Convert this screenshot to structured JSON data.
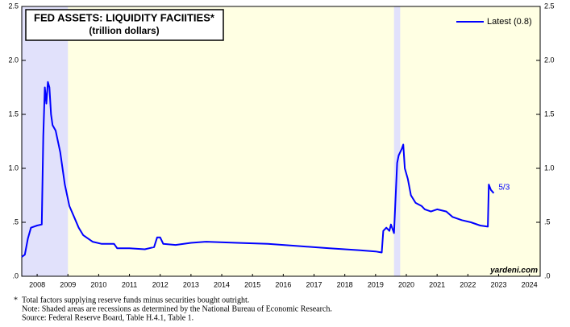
{
  "chart_data": {
    "type": "line",
    "title": "FED ASSETS: LIQUIDITY FACIITIES*",
    "subtitle": "(trillion dollars)",
    "x": [
      2008.0,
      2008.1,
      2008.2,
      2008.3,
      2008.5,
      2008.65,
      2008.7,
      2008.75,
      2008.8,
      2008.85,
      2008.9,
      2008.95,
      2009.0,
      2009.1,
      2009.25,
      2009.4,
      2009.55,
      2009.7,
      2009.85,
      2010.0,
      2010.3,
      2010.6,
      2011.0,
      2011.1,
      2011.5,
      2012.0,
      2012.3,
      2012.4,
      2012.5,
      2012.6,
      2013.0,
      2013.5,
      2014.0,
      2015.0,
      2016.0,
      2017.0,
      2018.0,
      2019.0,
      2019.5,
      2019.7,
      2019.75,
      2019.85,
      2019.95,
      2020.0,
      2020.1,
      2020.2,
      2020.25,
      2020.35,
      2020.4,
      2020.45,
      2020.55,
      2020.65,
      2020.8,
      2021.0,
      2021.1,
      2021.3,
      2021.5,
      2021.8,
      2022.0,
      2022.3,
      2022.6,
      2022.9,
      2023.15,
      2023.18,
      2023.25,
      2023.34
    ],
    "series": [
      {
        "name": "Latest (0.8)",
        "color": "#0000ff",
        "values": [
          0.18,
          0.2,
          0.35,
          0.45,
          0.47,
          0.48,
          1.3,
          1.75,
          1.6,
          1.8,
          1.75,
          1.5,
          1.4,
          1.35,
          1.15,
          0.85,
          0.65,
          0.55,
          0.45,
          0.38,
          0.32,
          0.3,
          0.3,
          0.26,
          0.26,
          0.25,
          0.27,
          0.36,
          0.36,
          0.3,
          0.29,
          0.31,
          0.32,
          0.31,
          0.3,
          0.28,
          0.26,
          0.24,
          0.23,
          0.22,
          0.42,
          0.45,
          0.42,
          0.48,
          0.4,
          1.05,
          1.12,
          1.18,
          1.22,
          1.0,
          0.9,
          0.75,
          0.68,
          0.65,
          0.62,
          0.6,
          0.62,
          0.6,
          0.55,
          0.52,
          0.5,
          0.47,
          0.46,
          0.85,
          0.8,
          0.77
        ]
      }
    ],
    "xlim": [
      2008,
      2024.85
    ],
    "xticks": [
      {
        "value": 2008.5,
        "label": "2008"
      },
      {
        "value": 2009.5,
        "label": "2009"
      },
      {
        "value": 2010.5,
        "label": "2010"
      },
      {
        "value": 2011.5,
        "label": "2011"
      },
      {
        "value": 2012.5,
        "label": "2012"
      },
      {
        "value": 2013.5,
        "label": "2013"
      },
      {
        "value": 2014.5,
        "label": "2014"
      },
      {
        "value": 2015.5,
        "label": "2015"
      },
      {
        "value": 2016.5,
        "label": "2016"
      },
      {
        "value": 2017.5,
        "label": "2017"
      },
      {
        "value": 2018.5,
        "label": "2018"
      },
      {
        "value": 2019.5,
        "label": "2019"
      },
      {
        "value": 2020.5,
        "label": "2020"
      },
      {
        "value": 2021.5,
        "label": "2021"
      },
      {
        "value": 2022.5,
        "label": "2022"
      },
      {
        "value": 2023.5,
        "label": "2023"
      },
      {
        "value": 2024.5,
        "label": "2024"
      }
    ],
    "ylim": [
      0,
      2.5
    ],
    "yticks": [
      {
        "value": 0,
        "label": ".0"
      },
      {
        "value": 0.5,
        "label": ".5"
      },
      {
        "value": 1,
        "label": "1.0"
      },
      {
        "value": 1.5,
        "label": "1.5"
      },
      {
        "value": 2,
        "label": "2.0"
      },
      {
        "value": 2.5,
        "label": "2.5"
      }
    ],
    "recessions": [
      [
        2008,
        2009.5
      ],
      [
        2020.1,
        2020.3
      ]
    ],
    "annotation": "5/3",
    "annotation_x": 2023.34,
    "annotation_y": 0.77,
    "source_credit": "yardeni.com",
    "footnote_marker": "*",
    "footnotes": [
      "Total factors supplying reserve funds minus securities bought outright.",
      "Note: Shaded areas are recessions as determined by the National Bureau of Economic Research.",
      "Source: Federal Reserve Board, Table H.4.1, Table 1."
    ]
  }
}
